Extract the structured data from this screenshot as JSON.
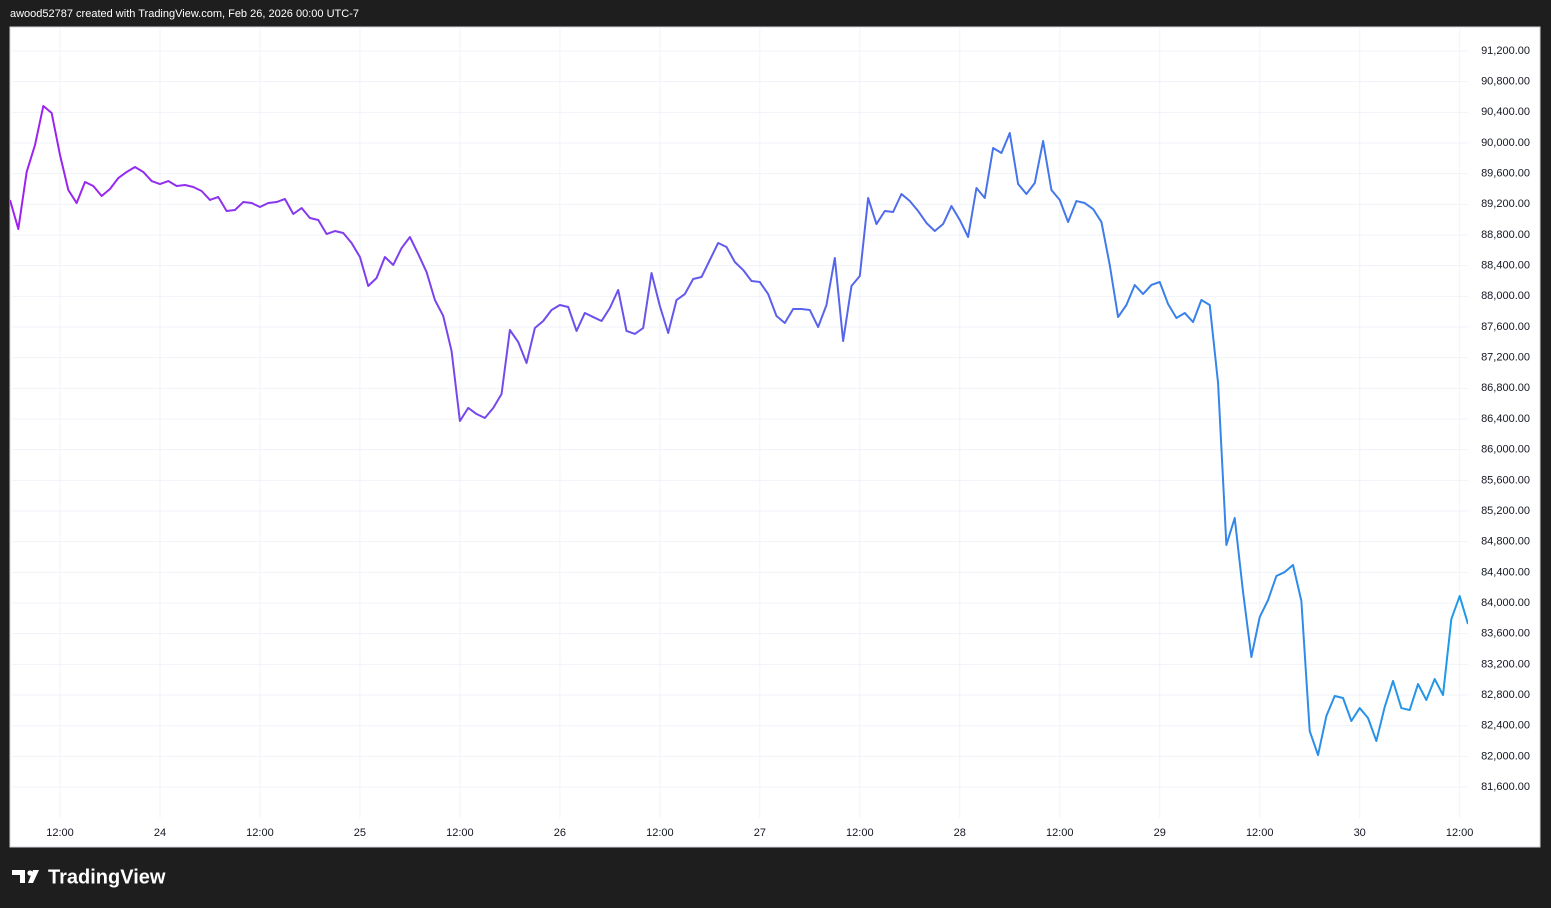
{
  "header": "awood52787 created with TradingView.com, Feb 26, 2026 00:00 UTC-7",
  "brand": "TradingView",
  "chart_data": {
    "type": "line",
    "line_gradient": [
      "#a020f0",
      "#1e9be8"
    ],
    "grid": true,
    "ylim": [
      81196,
      91513
    ],
    "yticks": [
      {
        "value": 81600,
        "label": "81,600.00"
      },
      {
        "value": 82000,
        "label": "82,000.00"
      },
      {
        "value": 82400,
        "label": "82,400.00"
      },
      {
        "value": 82800,
        "label": "82,800.00"
      },
      {
        "value": 83200,
        "label": "83,200.00"
      },
      {
        "value": 83600,
        "label": "83,600.00"
      },
      {
        "value": 84000,
        "label": "84,000.00"
      },
      {
        "value": 84400,
        "label": "84,400.00"
      },
      {
        "value": 84800,
        "label": "84,800.00"
      },
      {
        "value": 85200,
        "label": "85,200.00"
      },
      {
        "value": 85600,
        "label": "85,600.00"
      },
      {
        "value": 86000,
        "label": "86,000.00"
      },
      {
        "value": 86400,
        "label": "86,400.00"
      },
      {
        "value": 86800,
        "label": "86,800.00"
      },
      {
        "value": 87200,
        "label": "87,200.00"
      },
      {
        "value": 87600,
        "label": "87,600.00"
      },
      {
        "value": 88000,
        "label": "88,000.00"
      },
      {
        "value": 88400,
        "label": "88,400.00"
      },
      {
        "value": 88800,
        "label": "88,800.00"
      },
      {
        "value": 89200,
        "label": "89,200.00"
      },
      {
        "value": 89600,
        "label": "89,600.00"
      },
      {
        "value": 90000,
        "label": "90,000.00"
      },
      {
        "value": 90400,
        "label": "90,400.00"
      },
      {
        "value": 90800,
        "label": "90,800.00"
      },
      {
        "value": 91200,
        "label": "91,200.00"
      }
    ],
    "categories": [
      null,
      null,
      null,
      null,
      null,
      null,
      "12:00",
      null,
      null,
      null,
      null,
      null,
      null,
      null,
      null,
      null,
      null,
      null,
      "24",
      null,
      null,
      null,
      null,
      null,
      null,
      null,
      null,
      null,
      null,
      null,
      "12:00",
      null,
      null,
      null,
      null,
      null,
      null,
      null,
      null,
      null,
      null,
      null,
      "25",
      null,
      null,
      null,
      null,
      null,
      null,
      null,
      null,
      null,
      null,
      null,
      "12:00",
      null,
      null,
      null,
      null,
      null,
      null,
      null,
      null,
      null,
      null,
      null,
      "26",
      null,
      null,
      null,
      null,
      null,
      null,
      null,
      null,
      null,
      null,
      null,
      "12:00",
      null,
      null,
      null,
      null,
      null,
      null,
      null,
      null,
      null,
      null,
      null,
      "27",
      null,
      null,
      null,
      null,
      null,
      null,
      null,
      null,
      null,
      null,
      null,
      "12:00",
      null,
      null,
      null,
      null,
      null,
      null,
      null,
      null,
      null,
      null,
      null,
      "28",
      null,
      null,
      null,
      null,
      null,
      null,
      null,
      null,
      null,
      null,
      null,
      "12:00",
      null,
      null,
      null,
      null,
      null,
      null,
      null,
      null,
      null,
      null,
      null,
      "29",
      null,
      null,
      null,
      null,
      null,
      null,
      null,
      null,
      null,
      null,
      null,
      "12:00",
      null,
      null,
      null,
      null,
      null,
      null,
      null,
      null,
      null,
      null,
      null,
      "30",
      null,
      null,
      null,
      null,
      null,
      null,
      null,
      null,
      null,
      null,
      null,
      "12:00",
      null
    ],
    "values": [
      89257,
      88878,
      89622,
      89974,
      90483,
      90391,
      89844,
      89387,
      89217,
      89491,
      89439,
      89309,
      89400,
      89543,
      89622,
      89687,
      89622,
      89504,
      89465,
      89504,
      89439,
      89452,
      89426,
      89374,
      89257,
      89296,
      89113,
      89126,
      89230,
      89217,
      89165,
      89217,
      89230,
      89270,
      89074,
      89152,
      89022,
      88996,
      88813,
      88852,
      88826,
      88696,
      88513,
      88135,
      88239,
      88513,
      88409,
      88630,
      88774,
      88552,
      88317,
      87952,
      87744,
      87287,
      86374,
      86544,
      86465,
      86413,
      86544,
      86726,
      87561,
      87404,
      87130,
      87587,
      87678,
      87822,
      87887,
      87861,
      87548,
      87783,
      87730,
      87678,
      87848,
      88083,
      87548,
      87509,
      87587,
      88304,
      87874,
      87522,
      87952,
      88030,
      88226,
      88252,
      88474,
      88696,
      88644,
      88448,
      88343,
      88200,
      88187,
      88030,
      87744,
      87652,
      87835,
      87835,
      87822,
      87600,
      87887,
      88500,
      87417,
      88135,
      88265,
      89283,
      88943,
      89113,
      89100,
      89335,
      89243,
      89113,
      88957,
      88852,
      88943,
      89178,
      88996,
      88774,
      89413,
      89283,
      89935,
      89870,
      90130,
      89465,
      89335,
      89478,
      90026,
      89387,
      89257,
      88970,
      89243,
      89217,
      89139,
      88970,
      88409,
      87730,
      87887,
      88148,
      88030,
      88148,
      88187,
      87900,
      87717,
      87783,
      87665,
      87952,
      87887,
      86870,
      84757,
      85109,
      84143,
      83296,
      83817,
      84039,
      84352,
      84404,
      84496,
      84026,
      82330,
      82017,
      82526,
      82787,
      82761,
      82461,
      82630,
      82500,
      82200,
      82643,
      82983,
      82630,
      82604,
      82943,
      82735,
      83009,
      82800,
      83791,
      84091,
      83726
    ]
  }
}
